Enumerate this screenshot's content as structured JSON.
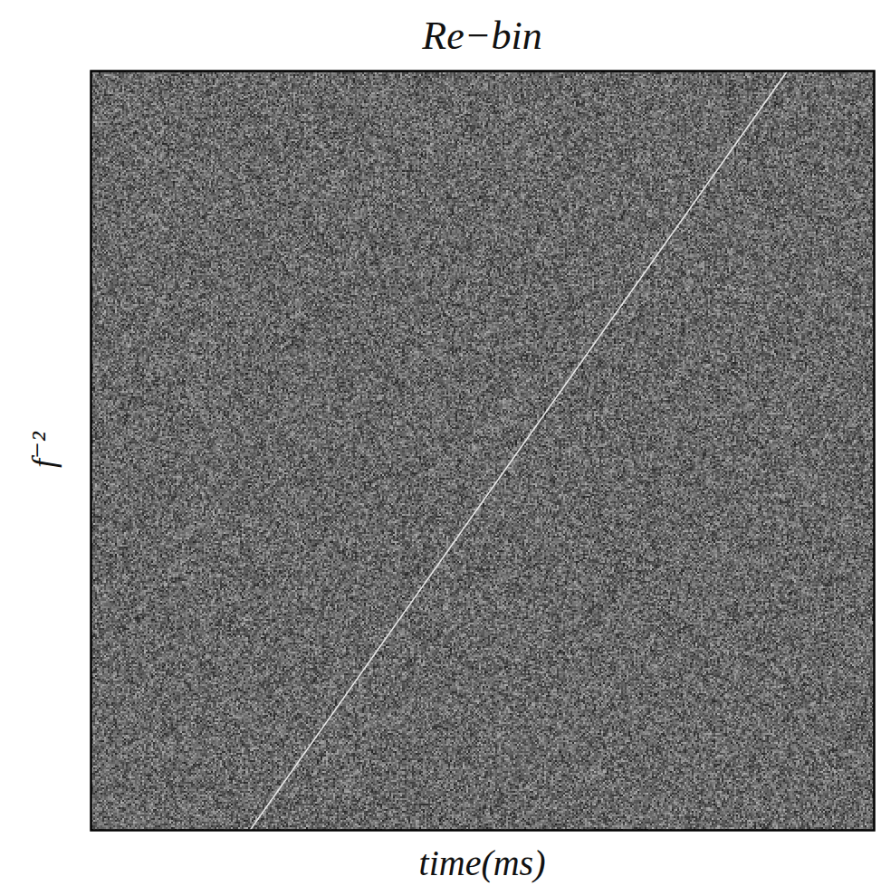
{
  "chart_data": {
    "type": "line",
    "title": "Re−bin",
    "x_label": "time(ms)",
    "y_label": "f⁻²",
    "x": [
      0.203,
      0.889
    ],
    "values": [
      0,
      1
    ],
    "color": "#e6e6e6",
    "xlim": [
      0,
      1
    ],
    "ylim": [
      0,
      1
    ],
    "tick_labels": false,
    "grid": false
  }
}
